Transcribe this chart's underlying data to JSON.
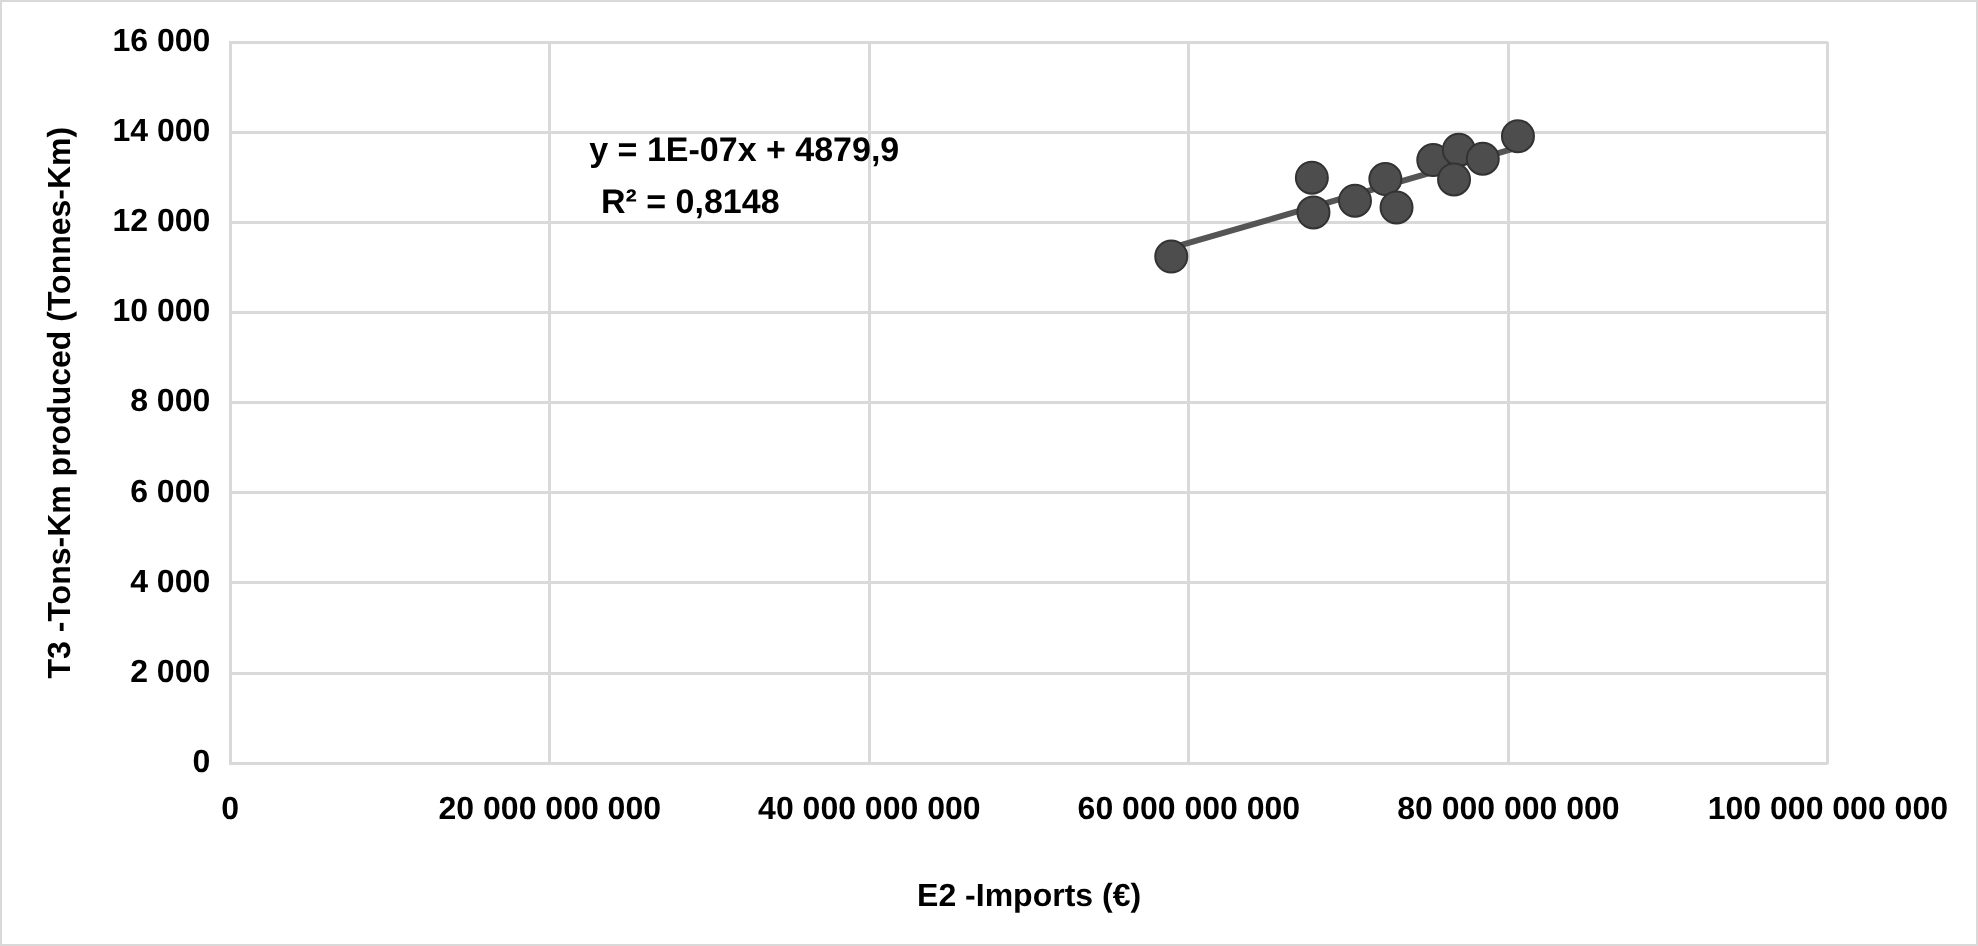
{
  "chart_data": {
    "type": "scatter",
    "xlabel": "E2 -Imports (€)",
    "ylabel": "T3 -Tons-Km produced (Tonnes-Km)",
    "annotations": [
      "y = 1E-07x + 4879,9",
      "R² = 0,8148"
    ],
    "series": [
      {
        "marker": "circle",
        "color": "#4d4d4d",
        "x": [
          58900000000,
          67700000000,
          67800000000,
          70400000000,
          72300000000,
          73000000000,
          75300000000,
          76900000000,
          76600000000,
          78400000000,
          80600000000
        ],
        "values": [
          11240,
          12990,
          12220,
          12480,
          12960,
          12330,
          13380,
          13610,
          12950,
          13410,
          13910
        ]
      },
      {
        "type": "line",
        "marker": "none",
        "color": "#555555",
        "x": [
          58900000000,
          80600000000
        ],
        "values": [
          11430,
          13660
        ]
      }
    ],
    "xlim": [
      0,
      100000000000
    ],
    "xticks": [
      0,
      {
        "value": 20000000000,
        "label": "20 000 000 000"
      },
      {
        "value": 40000000000,
        "label": "40 000 000 000"
      },
      {
        "value": 60000000000,
        "label": "60 000 000 000"
      },
      {
        "value": 80000000000,
        "label": "80 000 000 000"
      },
      {
        "value": 100000000000,
        "label": "100 000 000 000"
      }
    ],
    "ylim": [
      0,
      16000
    ],
    "yticks": [
      0,
      {
        "value": 2000,
        "label": "2 000"
      },
      {
        "value": 4000,
        "label": "4 000"
      },
      {
        "value": 6000,
        "label": "6 000"
      },
      {
        "value": 8000,
        "label": "8 000"
      },
      {
        "value": 10000,
        "label": "10 000"
      },
      {
        "value": 12000,
        "label": "12 000"
      },
      {
        "value": 14000,
        "label": "14 000"
      },
      {
        "value": 16000,
        "label": "16 000"
      }
    ],
    "grid": true,
    "legend": false,
    "line_style": "solid"
  }
}
